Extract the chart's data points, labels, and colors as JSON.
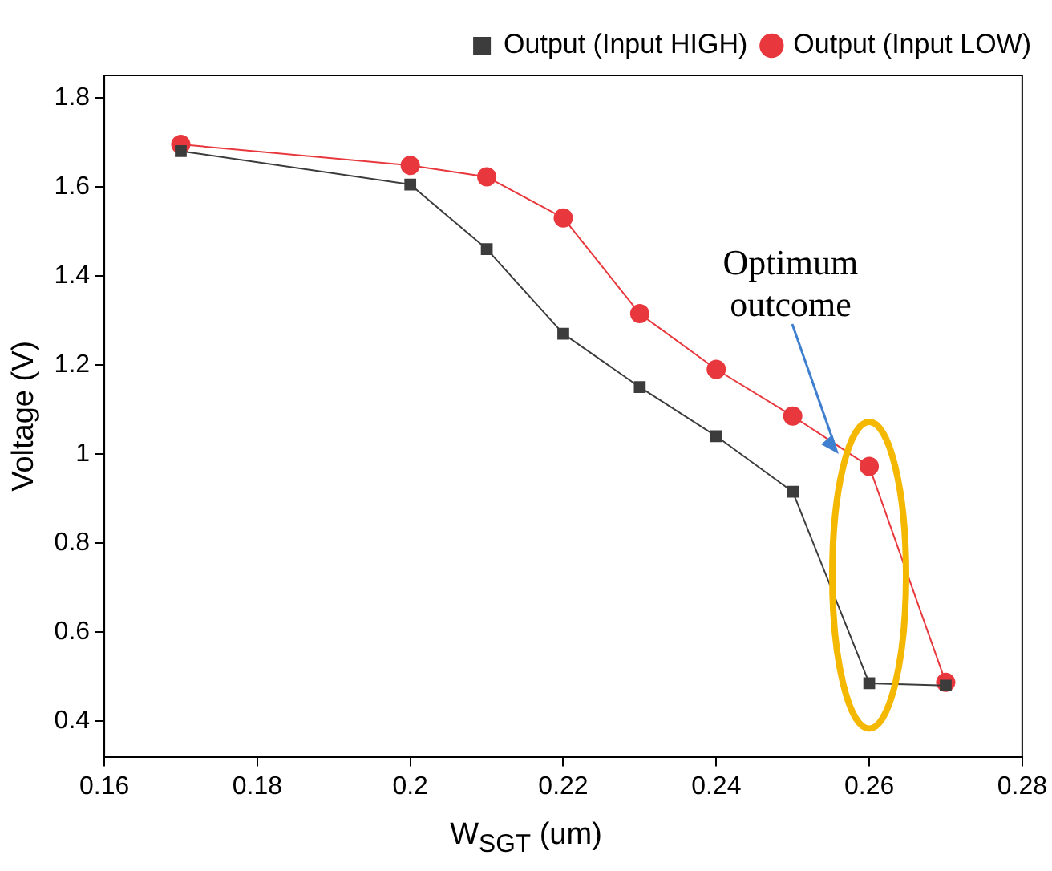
{
  "chart_data": {
    "type": "line",
    "xlabel": "W$_{SGT}$    (um)",
    "ylabel": "Voltage (V)",
    "x": [
      0.17,
      0.2,
      0.21,
      0.22,
      0.23,
      0.24,
      0.25,
      0.26,
      0.27
    ],
    "series": [
      {
        "name": "Output (Input HIGH)",
        "color": "#3c3c3c",
        "marker": "square",
        "values": [
          1.68,
          1.605,
          1.46,
          1.27,
          1.15,
          1.04,
          0.915,
          0.485,
          0.48
        ]
      },
      {
        "name": "Output (Input LOW)",
        "color": "#e8383d",
        "marker": "circle",
        "values": [
          1.695,
          1.648,
          1.622,
          1.53,
          1.315,
          1.19,
          1.085,
          0.972,
          0.487
        ]
      }
    ],
    "xlim": [
      0.16,
      0.28
    ],
    "xticks": [
      0.16,
      0.18,
      0.2,
      0.22,
      0.24,
      0.26,
      0.28
    ],
    "ylim": [
      0.32,
      1.85
    ],
    "yticks": [
      0.4,
      0.6,
      0.8,
      1.0,
      1.2,
      1.4,
      1.6,
      1.8
    ],
    "grid": false,
    "legend": "top right",
    "annotations": [
      {
        "text": "Optimum\noutcome",
        "x": 0.256,
        "y": 1.0
      }
    ]
  }
}
